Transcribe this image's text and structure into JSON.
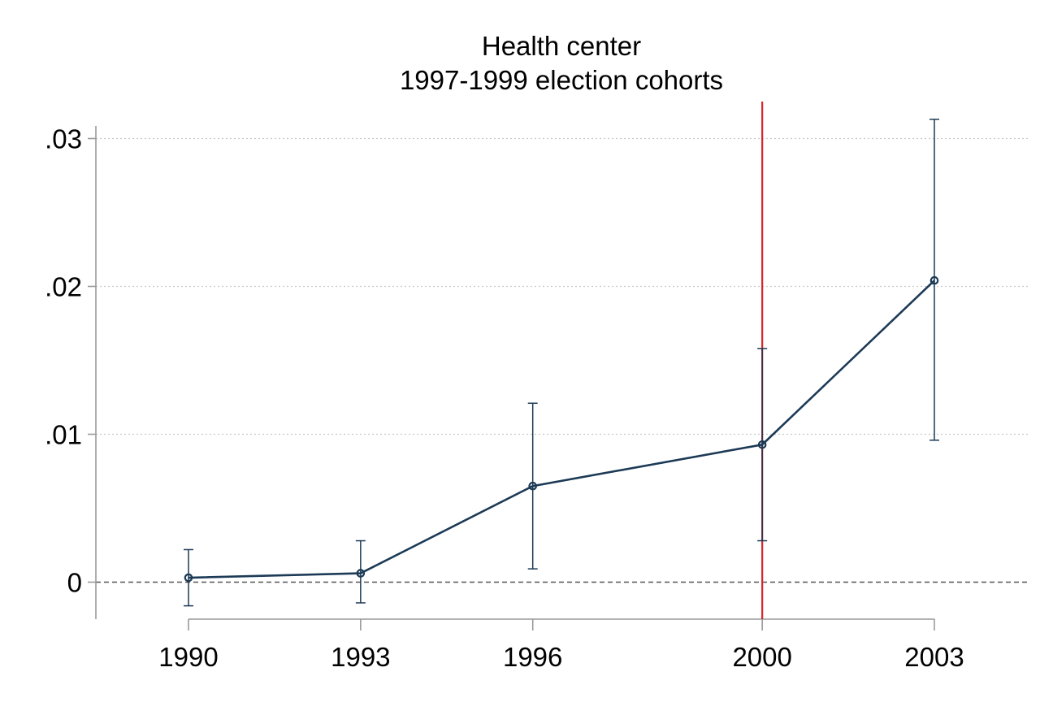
{
  "chart_data": {
    "type": "line",
    "title": [
      "Health center",
      "1997-1999 election cohorts"
    ],
    "x": [
      1990,
      1993,
      1996,
      2000,
      2003
    ],
    "x_tick_labels": [
      "1990",
      "1993",
      "1996",
      "2000",
      "2003"
    ],
    "series": [
      {
        "values": [
          0.0003,
          0.0006,
          0.0065,
          0.0093,
          0.0204
        ],
        "ci_low": [
          -0.0016,
          -0.0014,
          0.0009,
          0.0028,
          0.0096
        ],
        "ci_high": [
          0.0022,
          0.0028,
          0.0121,
          0.0158,
          0.0313
        ],
        "color": "#1c3a56"
      }
    ],
    "y_ticks": [
      0,
      0.01,
      0.02,
      0.03
    ],
    "y_tick_labels": [
      "0",
      ".01",
      ".02",
      ".03"
    ],
    "ylim": [
      -0.0025,
      0.0325
    ],
    "reference_line_x": 2000,
    "reference_line_color": "#d62728",
    "zero_line": true,
    "grid": "horizontal-dotted",
    "xlabel": "",
    "ylabel": ""
  }
}
